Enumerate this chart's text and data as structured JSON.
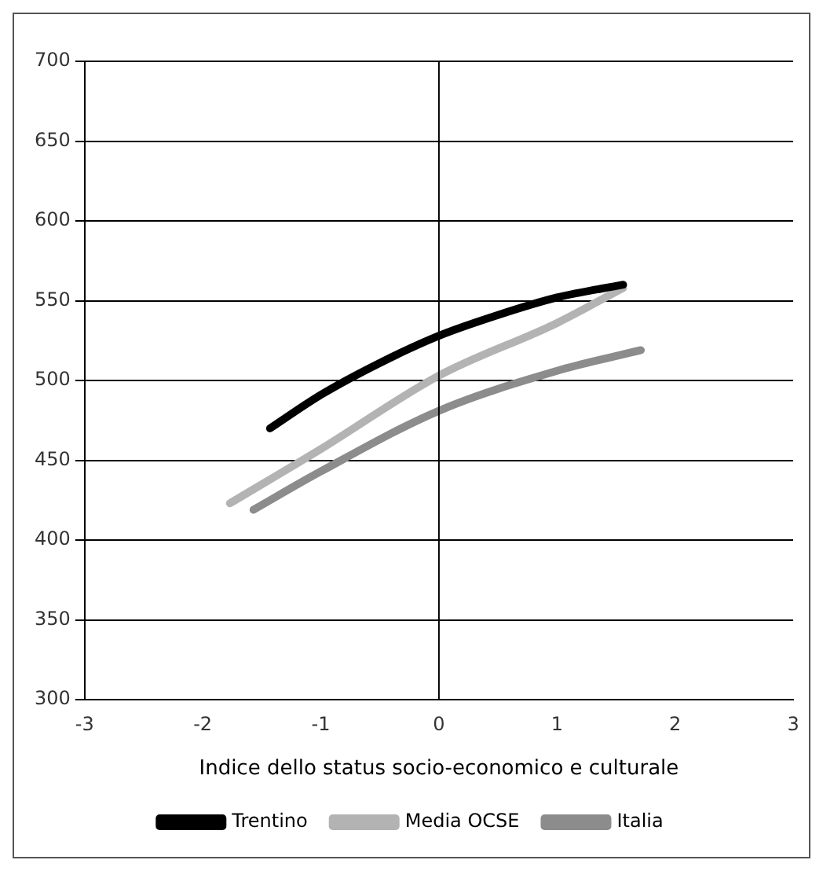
{
  "chart_data": {
    "type": "line",
    "xlabel": "Indice dello status socio-economico e culturale",
    "xlim": [
      -3,
      3
    ],
    "xticks": [
      {
        "value": -3,
        "label": "-3"
      },
      {
        "value": -2,
        "label": "-2"
      },
      {
        "value": -1,
        "label": "-1"
      },
      {
        "value": 0,
        "label": "0"
      },
      {
        "value": 1,
        "label": "1"
      },
      {
        "value": 2,
        "label": "2"
      },
      {
        "value": 3,
        "label": "3"
      }
    ],
    "ylim": [
      300,
      700
    ],
    "yticks": [
      300,
      350,
      400,
      450,
      500,
      550,
      600,
      650,
      700
    ],
    "grid": "y",
    "legend": "bottom",
    "marker": "none",
    "line_style": "solid",
    "ref_lines": [
      {
        "axis": "x",
        "value": 0,
        "color": "#000000"
      }
    ],
    "series": [
      {
        "name": "Trentino",
        "color": "#000000",
        "x": [
          -1.43,
          -1,
          -0.5,
          0,
          0.5,
          1,
          1.56
        ],
        "values": [
          470,
          491,
          511,
          528,
          541,
          552,
          560
        ]
      },
      {
        "name": "Media OCSE",
        "color": "#b3b3b3",
        "x": [
          -1.77,
          -1,
          0,
          1,
          1.56
        ],
        "values": [
          423,
          457,
          503,
          536,
          558
        ]
      },
      {
        "name": "Italia",
        "color": "#8c8c8c",
        "x": [
          -1.57,
          -1,
          0,
          1,
          1.71
        ],
        "values": [
          419,
          443,
          481,
          506,
          519
        ]
      }
    ]
  }
}
